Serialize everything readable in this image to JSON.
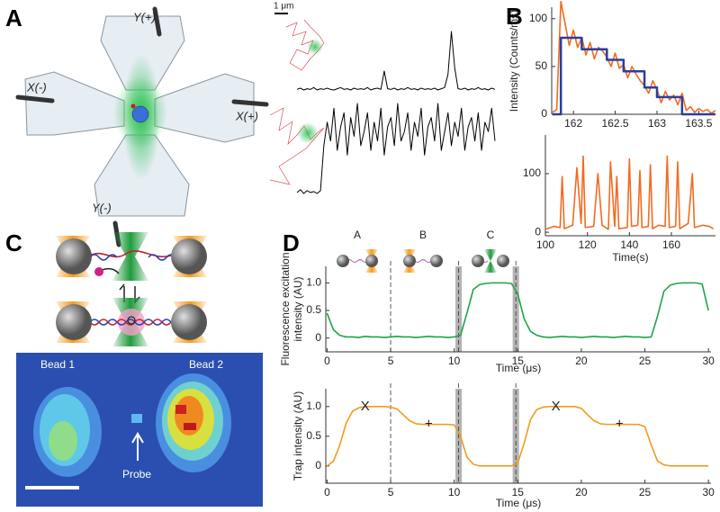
{
  "panel_labels": [
    "A",
    "B",
    "C",
    "D"
  ],
  "panel_a": {
    "labels": [
      "Y(+)",
      "X(-)",
      "X(+)",
      "Y(-)"
    ],
    "scale": "1 μm"
  },
  "panel_c": {
    "bead_1": "Bead 1",
    "bead_2": "Bead 2",
    "probe": "Probe"
  },
  "chart_data": [
    {
      "type": "line",
      "series": [
        {
          "color": "#000000",
          "values": [
            0.05,
            0.07,
            0.04,
            0.06,
            0.05,
            0.08,
            0.04,
            0.06,
            0.05,
            0.07,
            0.05,
            0.04,
            0.06,
            0.08,
            0.05,
            0.06,
            0.04,
            0.07,
            0.05,
            0.06,
            0.05,
            0.08,
            0.04,
            0.06,
            0.07,
            0.05,
            0.35,
            0.06,
            0.05,
            0.07,
            0.04,
            0.06,
            0.05,
            0.08,
            0.05,
            0.06,
            0.04,
            0.07,
            0.05,
            0.06,
            0.05,
            0.07,
            0.04,
            0.06,
            0.08,
            0.3,
            1.0,
            0.4,
            0.06,
            0.05,
            0.07,
            0.04,
            0.06,
            0.05,
            0.08,
            0.05,
            0.06,
            0.04,
            0.07,
            0.05
          ]
        }
      ]
    },
    {
      "type": "line",
      "series": [
        {
          "color": "#000000",
          "values": [
            0.05,
            0.08,
            0.04,
            0.07,
            0.05,
            0.06,
            0.04,
            0.07,
            0.55,
            0.8,
            0.6,
            0.95,
            0.5,
            0.75,
            0.9,
            0.45,
            0.85,
            0.65,
            1.0,
            0.55,
            0.7,
            0.9,
            0.5,
            0.8,
            0.6,
            0.95,
            0.45,
            0.75,
            0.85,
            0.55,
            1.0,
            0.6,
            0.7,
            0.9,
            0.5,
            0.8,
            0.65,
            0.95,
            0.45,
            0.75,
            0.85,
            0.6,
            1.0,
            0.5,
            0.7,
            0.9,
            0.55,
            0.8,
            0.65,
            0.95,
            0.5,
            0.75,
            0.85,
            0.6,
            0.9,
            0.5,
            0.8,
            0.7,
            0.95,
            0.6
          ]
        }
      ]
    },
    {
      "type": "line",
      "ylabel": "Intensity (Counts/ms)",
      "x": [
        161.75,
        161.8,
        161.85,
        161.9,
        161.95,
        162,
        162.05,
        162.1,
        162.15,
        162.2,
        162.25,
        162.3,
        162.35,
        162.4,
        162.45,
        162.5,
        162.55,
        162.6,
        162.65,
        162.7,
        162.75,
        162.8,
        162.85,
        162.9,
        162.95,
        163,
        163.05,
        163.1,
        163.15,
        163.2,
        163.25,
        163.3,
        163.35,
        163.4,
        163.45,
        163.5,
        163.55,
        163.6,
        163.65,
        163.7
      ],
      "series": [
        {
          "color": "#f26b21",
          "values": [
            2,
            5,
            118,
            95,
            72,
            88,
            70,
            80,
            62,
            75,
            58,
            70,
            66,
            60,
            50,
            64,
            48,
            52,
            38,
            50,
            42,
            35,
            30,
            22,
            35,
            26,
            12,
            24,
            15,
            20,
            10,
            22,
            4,
            8,
            2,
            6,
            3,
            5,
            1,
            4
          ]
        },
        {
          "color": "#2b3f9e",
          "drawstyle": "steps-post",
          "values": [
            0,
            0,
            80,
            80,
            80,
            80,
            80,
            68,
            68,
            68,
            68,
            68,
            68,
            57,
            57,
            57,
            57,
            45,
            45,
            45,
            45,
            45,
            28,
            28,
            28,
            18,
            18,
            18,
            18,
            18,
            18,
            0,
            0,
            0,
            0,
            0,
            0,
            0,
            0,
            0
          ]
        }
      ],
      "xlim": [
        161.74,
        163.7
      ],
      "xticks": [
        162,
        162.5,
        163,
        163.5
      ],
      "ylim": [
        0,
        112
      ],
      "yticks": [
        0,
        50,
        100
      ]
    },
    {
      "type": "line",
      "xlabel": "Time(s)",
      "x": [
        100,
        104,
        107,
        108,
        109,
        113,
        115,
        117,
        118,
        119,
        123,
        125,
        127,
        130,
        131,
        133,
        134,
        135,
        139,
        140,
        141,
        144,
        145,
        146,
        149,
        150,
        151,
        154,
        157,
        158,
        159,
        162,
        163,
        164,
        168,
        170,
        171,
        175,
        178,
        180
      ],
      "series": [
        {
          "color": "#f26b21",
          "values": [
            5,
            10,
            8,
            95,
            6,
            12,
            110,
            15,
            130,
            8,
            10,
            100,
            12,
            5,
            120,
            10,
            95,
            6,
            8,
            125,
            10,
            12,
            105,
            8,
            10,
            115,
            6,
            12,
            10,
            130,
            8,
            10,
            120,
            6,
            15,
            100,
            8,
            12,
            10,
            6
          ]
        }
      ],
      "xlim": [
        100,
        181
      ],
      "xticks": [
        100,
        120,
        140,
        160
      ],
      "ylim": [
        -6,
        166
      ],
      "yticks": [
        0,
        100
      ]
    },
    {
      "type": "line",
      "ylabel": [
        "Fluorescence excitation",
        "intensity (AU)"
      ],
      "xlabel": "Time (μs)",
      "insets": [
        "A",
        "B",
        "C"
      ],
      "x": [
        0,
        0.5,
        1,
        1.5,
        2,
        2.5,
        3,
        3.5,
        4,
        4.5,
        5,
        5.5,
        6,
        6.5,
        7,
        7.5,
        8,
        8.5,
        9,
        9.5,
        10,
        10.5,
        11,
        11.5,
        12,
        12.5,
        13,
        13.5,
        14,
        14.5,
        15,
        15.5,
        16,
        16.5,
        17,
        17.5,
        18,
        18.5,
        19,
        19.5,
        20,
        20.5,
        21,
        21.5,
        22,
        22.5,
        23,
        23.5,
        24,
        24.5,
        25,
        25.5,
        26,
        26.5,
        27,
        27.5,
        28,
        28.5,
        29,
        29.5,
        30
      ],
      "series": [
        {
          "color": "#1fa34a",
          "values": [
            0.45,
            0.15,
            0.05,
            0.02,
            0.02,
            0.01,
            0.03,
            0.02,
            0.02,
            0.01,
            0.02,
            0.03,
            0.02,
            0.02,
            0.01,
            0.02,
            0.03,
            0.02,
            0.02,
            0.01,
            0.02,
            0.05,
            0.45,
            0.88,
            0.97,
            0.99,
            1,
            1,
            1,
            0.99,
            0.8,
            0.35,
            0.12,
            0.05,
            0.02,
            0.01,
            0.02,
            0.03,
            0.02,
            0.02,
            0.01,
            0.02,
            0.03,
            0.02,
            0.02,
            0.01,
            0.02,
            0.03,
            0.02,
            0.02,
            0.01,
            0.02,
            0.4,
            0.85,
            0.96,
            0.99,
            1,
            1,
            1,
            0.98,
            0.5
          ]
        }
      ],
      "xlim": [
        -0.1,
        30.2
      ],
      "xticks": [
        0,
        5,
        10,
        15,
        20,
        25,
        30
      ],
      "ylim": [
        -0.25,
        1.3
      ],
      "yticks": [
        0,
        0.5,
        {
          "value": 1,
          "label": "1.0"
        }
      ],
      "dashed_lines": [
        5,
        10.35,
        14.85
      ],
      "shaded_spans": [
        [
          10.1,
          10.6
        ],
        [
          14.6,
          15.1
        ]
      ]
    },
    {
      "type": "line",
      "ylabel": "Trap intensity (AU)",
      "xlabel": "Time (μs)",
      "x": [
        0,
        0.5,
        1,
        1.5,
        2,
        2.5,
        3,
        3.5,
        4,
        4.5,
        5,
        5.5,
        6,
        6.5,
        7,
        7.5,
        8,
        8.5,
        9,
        9.5,
        10,
        10.5,
        11,
        11.5,
        12,
        12.5,
        13,
        13.5,
        14,
        14.5,
        15,
        15.5,
        16,
        16.5,
        17,
        17.5,
        18,
        18.5,
        19,
        19.5,
        20,
        20.5,
        21,
        21.5,
        22,
        22.5,
        23,
        23.5,
        24,
        24.5,
        25,
        25.5,
        26,
        26.5,
        27,
        27.5,
        28,
        28.5,
        29,
        29.5,
        30
      ],
      "series": [
        {
          "color": "#f39a1e",
          "values": [
            0,
            0.08,
            0.35,
            0.72,
            0.92,
            0.98,
            1,
            1,
            1,
            1,
            0.99,
            0.96,
            0.86,
            0.76,
            0.71,
            0.7,
            0.7,
            0.7,
            0.7,
            0.7,
            0.69,
            0.5,
            0.15,
            0.03,
            0,
            0,
            0,
            0,
            0,
            0,
            0.05,
            0.38,
            0.78,
            0.95,
            0.99,
            1,
            1,
            1,
            1,
            1,
            0.97,
            0.86,
            0.76,
            0.71,
            0.7,
            0.7,
            0.7,
            0.7,
            0.7,
            0.7,
            0.66,
            0.35,
            0.08,
            0.02,
            0,
            0,
            0,
            0,
            0,
            0,
            0
          ]
        }
      ],
      "xlim": [
        -0.1,
        30.2
      ],
      "xticks": [
        0,
        5,
        10,
        15,
        20,
        25,
        30
      ],
      "ylim": [
        -0.29,
        1.3
      ],
      "yticks": [
        0,
        0.5,
        {
          "value": 1,
          "label": "1.0"
        }
      ],
      "dashed_lines": [
        5,
        10.35,
        14.85
      ],
      "shaded_spans": [
        [
          10.1,
          10.6
        ],
        [
          14.6,
          15.1
        ]
      ],
      "annotations": [
        {
          "text": "X",
          "x": 3,
          "y": 1
        },
        {
          "text": "+",
          "x": 8,
          "y": 0.7
        },
        {
          "text": "X",
          "x": 18,
          "y": 1
        },
        {
          "text": "+",
          "x": 23,
          "y": 0.7
        }
      ]
    }
  ]
}
